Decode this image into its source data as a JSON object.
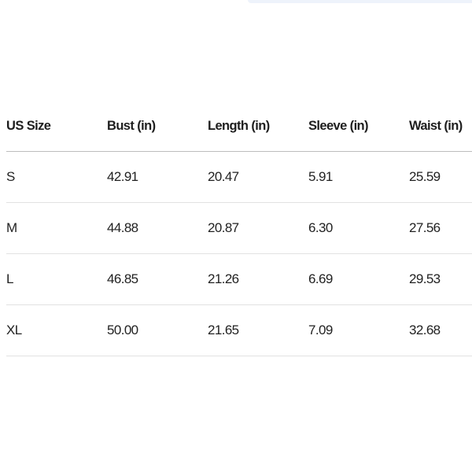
{
  "table": {
    "header": [
      "US Size",
      "Bust (in)",
      "Length (in)",
      "Sleeve (in)",
      "Waist (in)"
    ],
    "rows": [
      [
        "S",
        "42.91",
        "20.47",
        "5.91",
        "25.59"
      ],
      [
        "M",
        "44.88",
        "20.87",
        "6.30",
        "27.56"
      ],
      [
        "L",
        "46.85",
        "21.26",
        "6.69",
        "29.53"
      ],
      [
        "XL",
        "50.00",
        "21.65",
        "7.09",
        "32.68"
      ]
    ]
  }
}
